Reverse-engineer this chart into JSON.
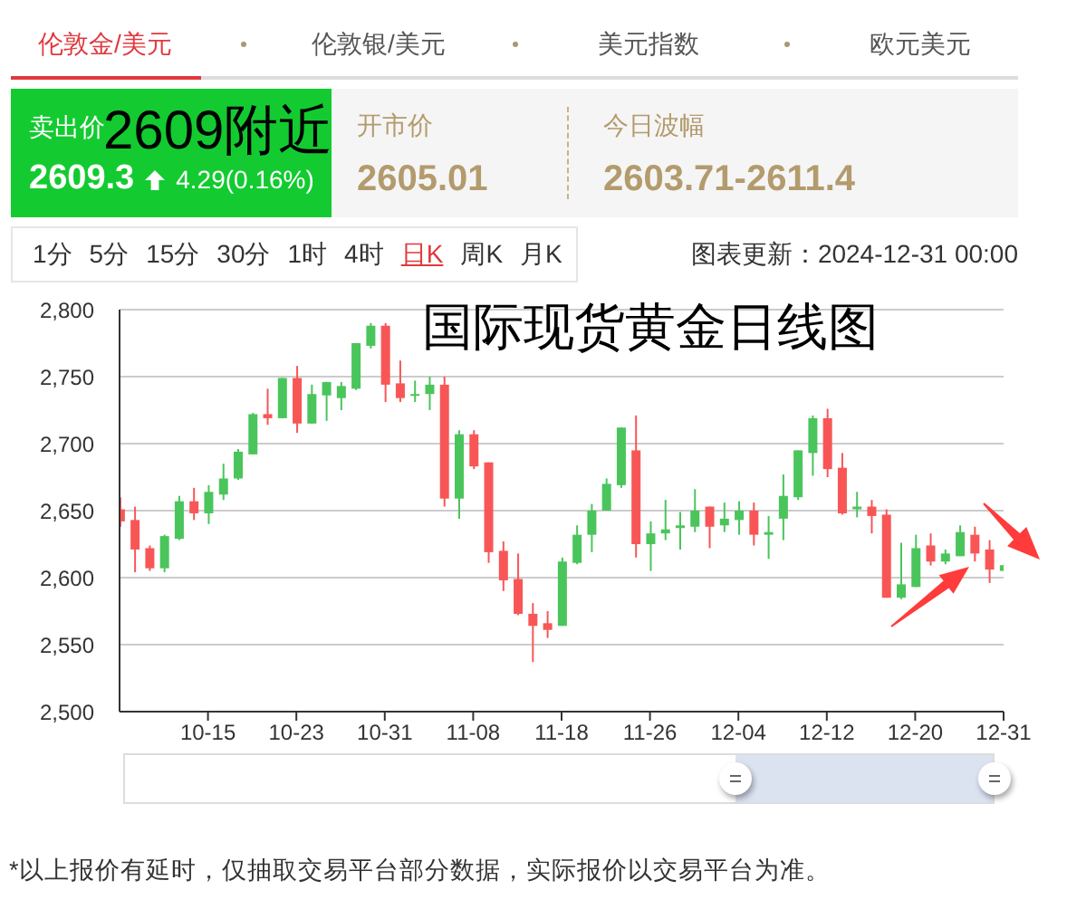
{
  "chart_data": [
    {
      "type": "other",
      "annotations": [
        "伦敦金/美元",
        "伦敦银/美元",
        "美元指数",
        "欧元美元",
        "卖出价",
        "2609附近",
        "2609.3",
        "4.29(0.16%)",
        "开市价",
        "2605.01",
        "今日波幅",
        "2603.71-2611.4",
        "1分",
        "5分",
        "15分",
        "30分",
        "1时",
        "4时",
        "日K",
        "周K",
        "月K",
        "图表更新：2024-12-31 00:00"
      ]
    },
    {
      "type": "candlestick",
      "title": "国际现货黄金日线图",
      "categories": [
        null,
        null,
        null,
        null,
        null,
        null,
        "10-15",
        null,
        null,
        null,
        null,
        null,
        "10-23",
        null,
        null,
        null,
        null,
        null,
        "10-31",
        null,
        null,
        null,
        null,
        null,
        "11-08",
        null,
        null,
        null,
        null,
        null,
        "11-18",
        null,
        null,
        null,
        null,
        null,
        "11-26",
        null,
        null,
        null,
        null,
        null,
        "12-04",
        null,
        null,
        null,
        null,
        null,
        "12-12",
        null,
        null,
        null,
        null,
        null,
        "12-20",
        null,
        null,
        null,
        null,
        null,
        "12-31"
      ],
      "ohlc": [
        [
          2651,
          2660,
          2638,
          2642
        ],
        [
          2643,
          2653,
          2604,
          2621
        ],
        [
          2622,
          2624,
          2605,
          2607
        ],
        [
          2607,
          2632,
          2604,
          2631
        ],
        [
          2629,
          2661,
          2628,
          2657
        ],
        [
          2657,
          2667,
          2643,
          2648
        ],
        [
          2648,
          2669,
          2640,
          2664
        ],
        [
          2662,
          2685,
          2658,
          2674
        ],
        [
          2674,
          2696,
          2673,
          2694
        ],
        [
          2692,
          2723,
          2692,
          2722
        ],
        [
          2722,
          2741,
          2714,
          2719
        ],
        [
          2719,
          2749,
          2719,
          2749
        ],
        [
          2749,
          2758,
          2708,
          2715
        ],
        [
          2715,
          2744,
          2715,
          2737
        ],
        [
          2736,
          2746,
          2717,
          2746
        ],
        [
          2734,
          2746,
          2725,
          2743
        ],
        [
          2741,
          2775,
          2740,
          2775
        ],
        [
          2773,
          2790,
          2771,
          2788
        ],
        [
          2788,
          2790,
          2731,
          2744
        ],
        [
          2745,
          2762,
          2731,
          2734
        ],
        [
          2736,
          2747,
          2731,
          2737
        ],
        [
          2737,
          2750,
          2725,
          2744
        ],
        [
          2744,
          2750,
          2653,
          2659
        ],
        [
          2659,
          2710,
          2644,
          2707
        ],
        [
          2707,
          2710,
          2681,
          2683
        ],
        [
          2686,
          2686,
          2611,
          2619
        ],
        [
          2620,
          2627,
          2590,
          2598
        ],
        [
          2599,
          2618,
          2572,
          2573
        ],
        [
          2573,
          2581,
          2537,
          2564
        ],
        [
          2566,
          2575,
          2555,
          2561
        ],
        [
          2564,
          2615,
          2564,
          2612
        ],
        [
          2611,
          2639,
          2610,
          2632
        ],
        [
          2632,
          2655,
          2619,
          2650
        ],
        [
          2650,
          2674,
          2650,
          2670
        ],
        [
          2669,
          2712,
          2667,
          2712
        ],
        [
          2695,
          2721,
          2615,
          2625
        ],
        [
          2625,
          2642,
          2605,
          2633
        ],
        [
          2633,
          2658,
          2628,
          2636
        ],
        [
          2637,
          2649,
          2621,
          2639
        ],
        [
          2638,
          2666,
          2634,
          2650
        ],
        [
          2653,
          2653,
          2622,
          2638
        ],
        [
          2639,
          2656,
          2634,
          2644
        ],
        [
          2643,
          2657,
          2632,
          2650
        ],
        [
          2650,
          2656,
          2624,
          2632
        ],
        [
          2632,
          2646,
          2614,
          2634
        ],
        [
          2644,
          2677,
          2628,
          2661
        ],
        [
          2660,
          2695,
          2658,
          2695
        ],
        [
          2693,
          2721,
          2676,
          2719
        ],
        [
          2719,
          2726,
          2675,
          2681
        ],
        [
          2682,
          2693,
          2647,
          2648
        ],
        [
          2651,
          2664,
          2645,
          2653
        ],
        [
          2653,
          2658,
          2633,
          2646
        ],
        [
          2647,
          2651,
          2585,
          2585
        ],
        [
          2585,
          2626,
          2584,
          2595
        ],
        [
          2593,
          2632,
          2593,
          2622
        ],
        [
          2624,
          2633,
          2609,
          2612
        ],
        [
          2612,
          2621,
          2610,
          2618
        ],
        [
          2616,
          2639,
          2616,
          2634
        ],
        [
          2632,
          2638,
          2612,
          2618
        ],
        [
          2621,
          2628,
          2596,
          2606
        ],
        [
          2605.01,
          2611.4,
          2603.71,
          2609.3
        ]
      ],
      "colors": [
        "#f85656",
        "#f85656",
        "#f85656",
        "#4ac55b",
        "#4ac55b",
        "#f85656",
        "#4ac55b",
        "#4ac55b",
        "#4ac55b",
        "#4ac55b",
        "#f85656",
        "#4ac55b",
        "#f85656",
        "#4ac55b",
        "#4ac55b",
        "#4ac55b",
        "#4ac55b",
        "#4ac55b",
        "#f85656",
        "#f85656",
        "#4ac55b",
        "#4ac55b",
        "#f85656",
        "#4ac55b",
        "#f85656",
        "#f85656",
        "#f85656",
        "#f85656",
        "#f85656",
        "#f85656",
        "#4ac55b",
        "#4ac55b",
        "#4ac55b",
        "#4ac55b",
        "#4ac55b",
        "#f85656",
        "#4ac55b",
        "#4ac55b",
        "#4ac55b",
        "#4ac55b",
        "#f85656",
        "#4ac55b",
        "#4ac55b",
        "#f85656",
        "#4ac55b",
        "#4ac55b",
        "#4ac55b",
        "#4ac55b",
        "#f85656",
        "#f85656",
        "#4ac55b",
        "#f85656",
        "#f85656",
        "#4ac55b",
        "#4ac55b",
        "#f85656",
        "#4ac55b",
        "#4ac55b",
        "#f85656",
        "#f85656",
        "#4ac55b"
      ],
      "ylim": [
        2500,
        2800
      ],
      "yticks": [
        {
          "value": 2500,
          "label": "2,500"
        },
        {
          "value": 2550,
          "label": "2,550"
        },
        {
          "value": 2600,
          "label": "2,600"
        },
        {
          "value": 2650,
          "label": "2,650"
        },
        {
          "value": 2700,
          "label": "2,700"
        },
        {
          "value": 2750,
          "label": "2,750"
        },
        {
          "value": 2800,
          "label": "2,800"
        }
      ],
      "grid": "y",
      "annotations": [
        "*以上报价有延时，仅抽取交易平台部分数据，实际报价以交易平台为准。"
      ]
    }
  ]
}
